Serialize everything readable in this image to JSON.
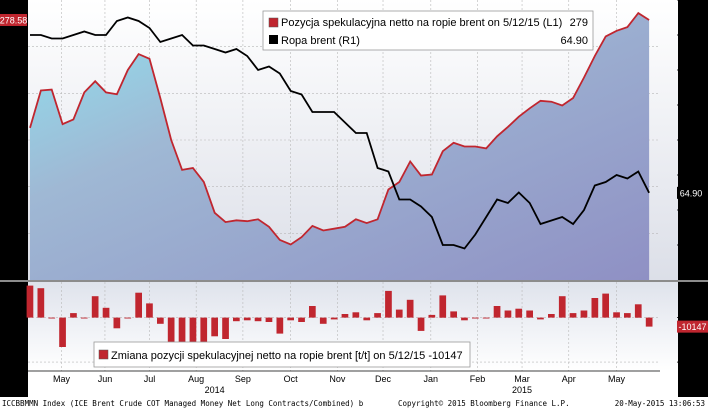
{
  "chart_data": [
    {
      "type": "area",
      "legend": {
        "position": "top-right",
        "entries": [
          {
            "label": "Pozycja spekulacyjna netto na ropie brent on 5/12/15 (L1)",
            "value": "279",
            "color": "#c0262f"
          },
          {
            "label": "Ropa brent (R1)",
            "value": "64.90",
            "color": "#000000"
          }
        ]
      },
      "left_axis": {
        "range": [
          0,
          300
        ],
        "ticks": [
          "0",
          "50",
          "100",
          "150",
          "200",
          "250",
          "300"
        ],
        "last_value_label": "278.58"
      },
      "right_axis": {
        "range": [
          40,
          120
        ],
        "ticks": [
          "50",
          "60",
          "70",
          "80",
          "90",
          "100",
          "110",
          "120"
        ],
        "last_value_label": "64.90"
      },
      "x_range": [
        0,
        58
      ],
      "series": [
        {
          "name": "Pozycja spekulacyjna netto na ropie brent",
          "axis": "left",
          "x": [
            0,
            1,
            2,
            3,
            4,
            5,
            6,
            7,
            8,
            9,
            10,
            11,
            12,
            13,
            14,
            15,
            16,
            17,
            18,
            19,
            20,
            21,
            22,
            23,
            24,
            25,
            26,
            27,
            28,
            29,
            30,
            31,
            32,
            33,
            34,
            35,
            36,
            37,
            38,
            39,
            40,
            41,
            42,
            43,
            44,
            45,
            46,
            47,
            48,
            49,
            50,
            51,
            52,
            53,
            54,
            55,
            56,
            57
          ],
          "values": [
            163,
            203,
            204,
            167,
            172,
            201,
            213,
            201,
            199,
            225,
            242,
            237,
            195,
            150,
            118,
            120,
            105,
            72,
            62,
            64,
            63,
            65,
            57,
            43,
            38,
            46,
            58,
            53,
            55,
            57,
            65,
            61,
            65,
            97,
            105,
            127,
            112,
            113,
            138,
            147,
            143,
            143,
            141,
            154,
            164,
            175,
            184,
            192,
            191,
            187,
            195,
            217,
            240,
            261,
            267,
            271,
            286,
            278.58
          ]
        },
        {
          "name": "Ropa brent",
          "axis": "right",
          "x": [
            0,
            1,
            2,
            3,
            4,
            5,
            6,
            7,
            8,
            9,
            10,
            11,
            12,
            13,
            14,
            15,
            16,
            17,
            18,
            19,
            20,
            21,
            22,
            23,
            24,
            25,
            26,
            27,
            28,
            29,
            30,
            31,
            32,
            33,
            34,
            35,
            36,
            37,
            38,
            39,
            40,
            41,
            42,
            43,
            44,
            45,
            46,
            47,
            48,
            49,
            50,
            51,
            52,
            53,
            54,
            55,
            56,
            57
          ],
          "values": [
            110,
            110,
            109,
            109,
            110,
            111,
            110,
            110,
            114,
            115,
            114,
            112,
            108,
            109,
            110,
            107,
            107,
            106,
            105,
            106,
            104,
            100,
            101,
            99,
            94,
            93,
            88,
            88,
            88,
            85,
            82,
            82,
            72,
            71,
            63,
            63,
            61,
            58,
            50,
            50,
            49,
            53,
            58,
            63,
            62,
            65,
            62,
            56,
            57,
            58,
            56,
            60,
            67,
            68,
            70,
            69,
            71,
            64.9
          ]
        }
      ]
    },
    {
      "type": "bar",
      "legend": {
        "position": "bottom-left",
        "entries": [
          {
            "label": "Zmiana pozycji spekulacyjnej netto na ropie brent [t/t] on 5/12/15 -10147",
            "color": "#c0262f"
          }
        ]
      },
      "right_axis": {
        "range": [
          -60000,
          40000
        ],
        "ticks": [
          "-50000",
          "0"
        ],
        "last_value_label": "-10147"
      },
      "series": [
        {
          "name": "Zmiana pozycji spekulacyjnej netto na ropie brent [t/t]",
          "x": [
            0,
            1,
            2,
            3,
            4,
            5,
            6,
            7,
            8,
            9,
            10,
            11,
            12,
            13,
            14,
            15,
            16,
            17,
            18,
            19,
            20,
            21,
            22,
            23,
            24,
            25,
            26,
            27,
            28,
            29,
            30,
            31,
            32,
            33,
            34,
            35,
            36,
            37,
            38,
            39,
            40,
            41,
            42,
            43,
            44,
            45,
            46,
            47,
            48,
            49,
            50,
            51,
            52,
            53,
            54,
            55,
            56,
            57
          ],
          "values": [
            36000,
            33000,
            -1000,
            -33000,
            5000,
            -1000,
            24000,
            11000,
            -12000,
            -1000,
            28000,
            16000,
            -7000,
            -31000,
            -45000,
            -28000,
            -36000,
            -21000,
            -24000,
            -4000,
            -3000,
            -4000,
            -5000,
            -18000,
            -3000,
            -5000,
            13000,
            -7000,
            -2000,
            4000,
            6000,
            -3000,
            5000,
            30000,
            9000,
            20000,
            -15000,
            3000,
            25000,
            7000,
            -3000,
            -1000,
            -1000,
            13000,
            8000,
            10000,
            8000,
            -2000,
            4000,
            24000,
            5000,
            8000,
            22000,
            27000,
            6000,
            5000,
            15000,
            -10147
          ]
        }
      ]
    }
  ],
  "x_axis": {
    "months": [
      "May",
      "Jun",
      "Jul",
      "Aug",
      "Sep",
      "Oct",
      "Nov",
      "Dec",
      "Jan",
      "Feb",
      "Mar",
      "Apr",
      "May"
    ],
    "month_x": [
      2.9,
      6.9,
      11.0,
      15.3,
      19.6,
      24.0,
      28.3,
      32.5,
      36.9,
      41.2,
      45.3,
      49.6,
      54.0
    ],
    "years": [
      {
        "label": "2014",
        "x": 17.0
      },
      {
        "label": "2015",
        "x": 45.3
      }
    ]
  },
  "footer": {
    "left": "ICCBBMMN Index (ICE Brent Crude COT Managed Money Net Long Contracts/Combined) b",
    "center": "Copyright© 2015 Bloomberg Finance L.P.",
    "right": "20-May-2015 13:06:53"
  }
}
